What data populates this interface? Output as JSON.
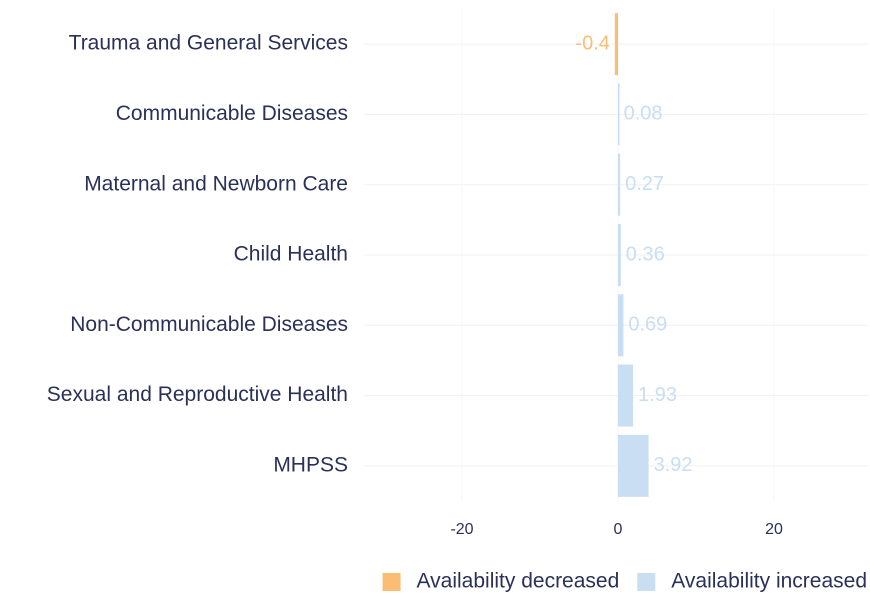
{
  "chart_data": {
    "type": "bar",
    "orientation": "horizontal",
    "categories": [
      "Trauma and General Services",
      "Communicable Diseases",
      "Maternal and Newborn Care",
      "Child Health",
      "Non-Communicable Diseases",
      "Sexual and Reproductive Health",
      "MHPSS"
    ],
    "series": [
      {
        "name": "Availability decreased",
        "color": "#fbbd73",
        "values": [
          -0.4,
          null,
          null,
          null,
          null,
          null,
          null
        ]
      },
      {
        "name": "Availability increased",
        "color": "#c9ddf3",
        "values": [
          null,
          0.08,
          0.27,
          0.36,
          0.69,
          1.93,
          3.92
        ]
      }
    ],
    "xlim": [
      -32.5,
      32
    ],
    "xticks": [
      -20,
      0,
      20
    ],
    "grid": true,
    "legend": "bottom-right"
  }
}
